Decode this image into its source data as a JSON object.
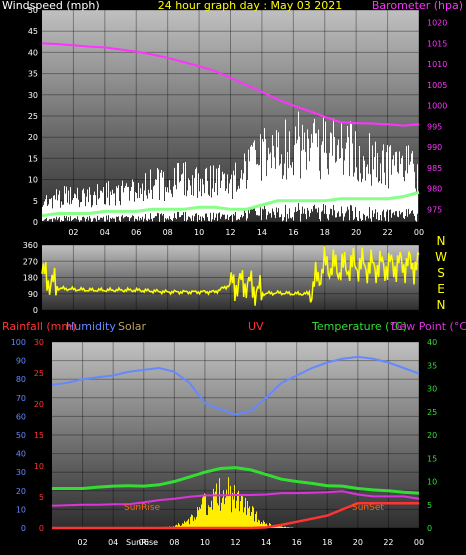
{
  "title": "24 hour graph day : May 03 2021",
  "colors": {
    "wind_label": "#ffffff",
    "baro": "#ff33ff",
    "title": "#ffff00",
    "gust": "#ffffff",
    "avg_wind": "#88ff88",
    "dir": "#ffff00",
    "rain": "#ff3333",
    "humidity": "#6688ff",
    "solar": "#b8a060",
    "uv": "#ff3333",
    "temperature": "#33dd33",
    "dewpoint": "#dd33dd",
    "sun_event": "#ff6600"
  },
  "panel1": {
    "left_label": "Windspeed (mph)",
    "right_label": "Barometer (hpa)",
    "left_ticks": [
      "0",
      "5",
      "10",
      "15",
      "20",
      "25",
      "30",
      "35",
      "40",
      "45",
      "50"
    ],
    "right_ticks": [
      "975",
      "980",
      "985",
      "990",
      "995",
      "1000",
      "1005",
      "1010",
      "1015",
      "1020"
    ]
  },
  "panel2": {
    "left_ticks": [
      "0",
      "90",
      "180",
      "270",
      "360"
    ],
    "compass": [
      "N",
      "W",
      "S",
      "E",
      "N"
    ]
  },
  "panel3": {
    "labels": {
      "rain": "Rainfall (mm)",
      "humidity": "Humidity",
      "solar": "Solar",
      "uv": "UV",
      "temperature": "Temperature (°C)",
      "dewpoint": "Dew Point (°C)"
    },
    "humidity_ticks": [
      "0",
      "10",
      "20",
      "30",
      "40",
      "50",
      "60",
      "70",
      "80",
      "90",
      "100"
    ],
    "rain_ticks": [
      "0",
      "5",
      "10",
      "15",
      "20",
      "25",
      "30"
    ],
    "temp_ticks": [
      "0",
      "5",
      "10",
      "15",
      "20",
      "25",
      "30",
      "35",
      "40"
    ],
    "sunrise": "SunRise",
    "sunset": "SunSet"
  },
  "x_ticks": [
    "02",
    "04",
    "06",
    "08",
    "10",
    "12",
    "14",
    "16",
    "18",
    "20",
    "22",
    "00"
  ],
  "bottom_ticks": [
    "02",
    "04",
    "06",
    "08",
    "10",
    "12",
    "14",
    "16",
    "18",
    "20",
    "22",
    "00"
  ],
  "bottom_extra": "SunRise",
  "chart_data": [
    {
      "type": "line",
      "title": "24 hour graph day : May 03 2021",
      "xlabel": "",
      "ylabel": "Windspeed (mph)",
      "x": [
        0,
        1,
        2,
        3,
        4,
        5,
        6,
        7,
        8,
        9,
        10,
        11,
        12,
        13,
        14,
        15,
        16,
        17,
        18,
        19,
        20,
        21,
        22,
        23,
        24
      ],
      "ylim": [
        0,
        50
      ],
      "series": [
        {
          "name": "Windspeed (mph)",
          "axis": "left",
          "values": [
            5,
            6,
            6,
            6,
            7,
            7,
            8,
            9,
            9,
            10,
            10,
            10,
            9,
            12,
            15,
            17,
            18,
            18,
            17,
            19,
            16,
            15,
            14,
            13,
            12
          ]
        },
        {
          "name": "Barometer (hpa)",
          "axis": "right",
          "ylim": [
            972,
            1023
          ],
          "values": [
            1015,
            1014.8,
            1014.5,
            1014.2,
            1014,
            1013.5,
            1013,
            1012.3,
            1011.5,
            1010.5,
            1009.5,
            1008.3,
            1006.7,
            1005,
            1003.3,
            1001.5,
            1000,
            998.7,
            997.3,
            996,
            995.8,
            995.7,
            995.5,
            995.2,
            995.5
          ]
        },
        {
          "name": "",
          "axis": "left",
          "values": [
            1.5,
            2,
            2,
            2,
            2.5,
            2.5,
            2.5,
            3,
            3,
            3,
            3.5,
            3.5,
            3,
            3,
            4,
            5,
            5,
            5,
            5,
            5.5,
            5.5,
            5.5,
            5.5,
            6,
            7
          ]
        }
      ]
    },
    {
      "type": "scatter",
      "title": "",
      "xlabel": "",
      "ylabel": "",
      "ylim": [
        0,
        360
      ],
      "x": [
        0,
        1,
        2,
        3,
        4,
        5,
        6,
        7,
        8,
        9,
        10,
        11,
        12,
        13,
        14,
        15,
        16,
        17,
        18,
        19,
        20,
        21,
        22,
        23,
        24
      ],
      "values": [
        200,
        120,
        115,
        110,
        110,
        110,
        110,
        105,
        100,
        100,
        100,
        100,
        140,
        150,
        90,
        95,
        90,
        90,
        250,
        230,
        250,
        240,
        245,
        255,
        250
      ]
    },
    {
      "type": "line",
      "title": "",
      "xlabel": "",
      "ylabel": "",
      "x": [
        0,
        1,
        2,
        3,
        4,
        5,
        6,
        7,
        8,
        9,
        10,
        11,
        12,
        13,
        14,
        15,
        16,
        17,
        18,
        19,
        20,
        21,
        22,
        23,
        24
      ],
      "series": [
        {
          "name": "Humidity",
          "axis": "humidity",
          "ylim": [
            0,
            100
          ],
          "values": [
            77,
            78,
            80,
            81,
            82,
            84,
            85,
            86,
            84,
            78,
            67,
            64,
            61,
            63,
            70,
            78,
            82,
            86,
            89,
            91,
            92,
            91,
            89,
            86,
            83
          ]
        },
        {
          "name": "Temperature (°C)",
          "axis": "temperature",
          "ylim": [
            0,
            40
          ],
          "values": [
            8.5,
            8.5,
            8.5,
            8.8,
            9,
            9.1,
            9,
            9.3,
            10,
            11,
            12,
            12.8,
            13,
            12.5,
            11.5,
            10.5,
            10,
            9.6,
            9.1,
            9,
            8.5,
            8.2,
            8,
            7.7,
            7.5
          ]
        },
        {
          "name": "Dew Point (°C)",
          "axis": "temperature",
          "ylim": [
            0,
            40
          ],
          "values": [
            4.8,
            4.9,
            5,
            5,
            5.1,
            5.1,
            5.5,
            6,
            6.3,
            6.7,
            7,
            7,
            7.1,
            7.1,
            7.2,
            7.5,
            7.5,
            7.6,
            7.7,
            7.9,
            7.2,
            6.8,
            6.8,
            6.8,
            6.3
          ]
        },
        {
          "name": "Rainfall (mm)",
          "axis": "rain",
          "ylim": [
            0,
            30
          ],
          "values": [
            0,
            0,
            0,
            0,
            0,
            0,
            0,
            0,
            0,
            0,
            0,
            0,
            0,
            0,
            0.1,
            0.5,
            1,
            1.5,
            2,
            3,
            4,
            4,
            4,
            4,
            4
          ]
        },
        {
          "name": "Solar",
          "axis": "temperature",
          "ylim": [
            0,
            40
          ],
          "values": [
            0,
            0,
            0,
            0,
            0,
            0,
            0,
            0,
            0.5,
            2,
            6,
            9,
            8,
            4,
            1,
            0.3,
            0,
            0,
            0,
            0,
            0,
            0,
            0,
            0,
            0
          ]
        }
      ]
    }
  ]
}
